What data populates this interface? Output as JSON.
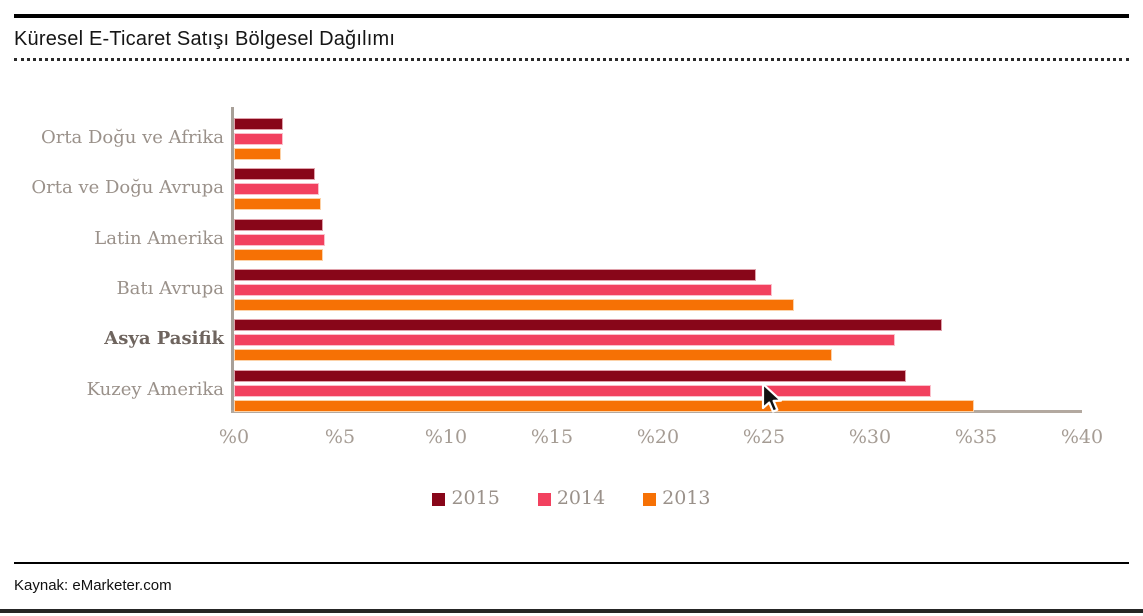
{
  "page": {
    "title": "Küresel E-Ticaret Satışı Bölgesel Dağılımı",
    "source_label": "Kaynak: eMarketer.com"
  },
  "colors": {
    "series_2015": "#880619",
    "series_2014": "#f2415f",
    "series_2013": "#f67105",
    "axis_line": "#a8a098",
    "axis_text": "#a59c94",
    "category_text": "#9a918a",
    "category_text_emphasis": "#6e645e",
    "rule_black": "#000000"
  },
  "chart_data": {
    "type": "bar",
    "orientation": "horizontal",
    "title": "Küresel E-Ticaret Satışı Bölgesel Dağılımı",
    "categories": [
      "Orta Doğu ve Afrika",
      "Orta ve Doğu Avrupa",
      "Latin Amerika",
      "Batı Avrupa",
      "Asya Pasifik",
      "Kuzey Amerika"
    ],
    "emphasized_category": "Asya Pasifik",
    "series": [
      {
        "name": "2015",
        "color": "#880619",
        "border": "#dfa0aa",
        "values": [
          2.3,
          3.8,
          4.2,
          24.6,
          33.4,
          31.7
        ]
      },
      {
        "name": "2014",
        "color": "#f2415f",
        "border": "#fbc0cb",
        "values": [
          2.3,
          4.0,
          4.3,
          25.4,
          31.2,
          32.9
        ]
      },
      {
        "name": "2013",
        "color": "#f67105",
        "border": "#fcd2a8",
        "values": [
          2.2,
          4.1,
          4.2,
          26.4,
          28.2,
          34.9
        ]
      }
    ],
    "xlabel": "",
    "ylabel": "",
    "x_axis": {
      "min": 0,
      "max": 40,
      "ticks": [
        "%0",
        "%5",
        "%10",
        "%15",
        "%20",
        "%25",
        "%30",
        "%35",
        "%40"
      ]
    },
    "grid": false,
    "legend": [
      "2015",
      "2014",
      "2013"
    ],
    "legend_position": "bottom-center",
    "source": "Kaynak: eMarketer.com"
  }
}
